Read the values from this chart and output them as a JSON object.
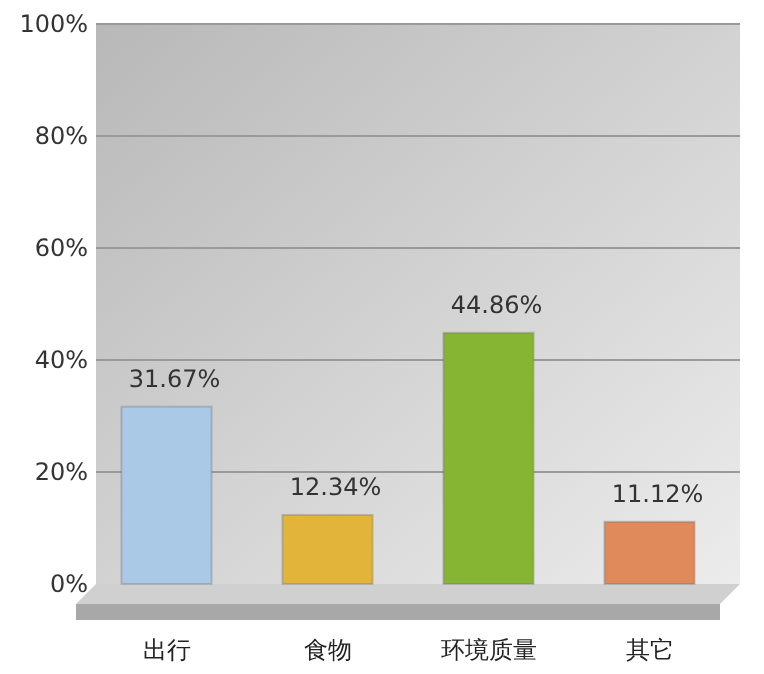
{
  "chart_data": {
    "type": "bar",
    "categories": [
      "出行",
      "食物",
      "环境质量",
      "其它"
    ],
    "values": [
      31.67,
      12.34,
      44.86,
      11.12
    ],
    "colors": [
      "#a9c9e6",
      "#e2b43a",
      "#86b534",
      "#e0895a"
    ],
    "ylim": [
      0,
      100
    ],
    "yticks": [
      {
        "value": 0,
        "label": "0%"
      },
      {
        "value": 20,
        "label": "20%"
      },
      {
        "value": 40,
        "label": "40%"
      },
      {
        "value": 60,
        "label": "60%"
      },
      {
        "value": 80,
        "label": "80%"
      },
      {
        "value": 100,
        "label": "100%"
      }
    ],
    "grid": "y",
    "value_labels": [
      "31.67%",
      "12.34%",
      "44.86%",
      "11.12%"
    ]
  }
}
